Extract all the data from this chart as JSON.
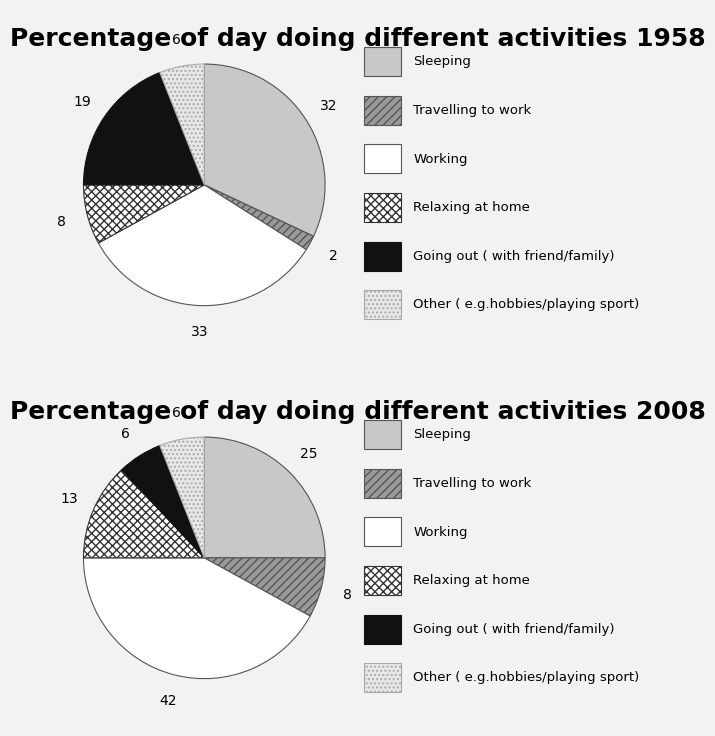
{
  "title_1958": "Percentage of day doing different activities 1958",
  "title_2008": "Percentage of day doing different activities 2008",
  "labels": [
    "Sleeping",
    "Travelling to work",
    "Working",
    "Relaxing at home",
    "Going out ( with friend/family)",
    "Other ( e.g.hobbies/playing sport)"
  ],
  "values_1958": [
    32,
    2,
    33,
    8,
    19,
    6
  ],
  "values_2008": [
    25,
    8,
    42,
    13,
    6,
    6
  ],
  "colors": [
    "#c8c8c8",
    "#888888",
    "#ffffff",
    "hatch_cross",
    "#000000",
    "hatch_dot"
  ],
  "bg_color": "#ffffff",
  "outer_bg": "#f0f0f0",
  "title_fontsize": 18,
  "label_fontsize": 11
}
